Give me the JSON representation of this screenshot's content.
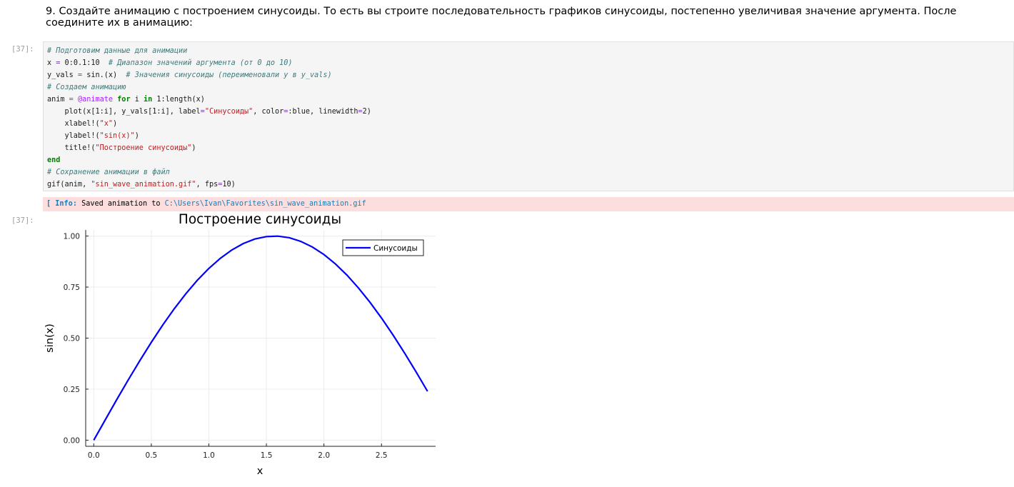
{
  "markdown": {
    "text": "9. Создайте анимацию с построением синусоиды. То есть вы строите последовательность графиков синусоиды, постепенно увеличивая значение аргумента. После соедините их в анимацию:"
  },
  "code_cell": {
    "prompt": "[37]:",
    "lines": [
      {
        "comment": "# Подготовим данные для анимации"
      },
      {
        "code": "x = 0:0.1:10",
        "comment": "# Диапазон значений аргумента (от 0 до 10)"
      },
      {
        "code": "y_vals = sin.(x)",
        "comment": "# Значения синусоиды (переименовали y в y_vals)"
      },
      {
        "comment": "# Создаем анимацию"
      },
      {
        "code": "anim = @animate for i in 1:length(x)"
      },
      {
        "code": "    plot(x[1:i], y_vals[1:i], label=\"Синусоиды\", color=:blue, linewidth=2)"
      },
      {
        "code": "    xlabel!(\"x\")"
      },
      {
        "code": "    ylabel!(\"sin(x)\")"
      },
      {
        "code": "    title!(\"Построение синусоиды\")"
      },
      {
        "code": "end"
      },
      {
        "comment": "# Сохранение анимации в файл"
      },
      {
        "code": "gif(anim, \"sin_wave_animation.gif\", fps=10)"
      }
    ]
  },
  "stderr": {
    "bracket": "[",
    "tag": "Info:",
    "message": "Saved animation to",
    "path": "C:\\Users\\Ivan\\Favorites\\sin_wave_animation.gif"
  },
  "output_prompt": "[37]:",
  "chart_data": {
    "type": "line",
    "title": "Построение синусоиды",
    "xlabel": "x",
    "ylabel": "sin(x)",
    "xlim": [
      -0.07,
      2.97
    ],
    "ylim": [
      -0.03,
      1.03
    ],
    "xticks": [
      0.0,
      0.5,
      1.0,
      1.5,
      2.0,
      2.5
    ],
    "xtick_labels": [
      "0.0",
      "0.5",
      "1.0",
      "1.5",
      "2.0",
      "2.5"
    ],
    "yticks": [
      0.0,
      0.25,
      0.5,
      0.75,
      1.0
    ],
    "ytick_labels": [
      "0.00",
      "0.25",
      "0.50",
      "0.75",
      "1.00"
    ],
    "grid": true,
    "legend_position": "top-right",
    "series": [
      {
        "name": "Синусоиды",
        "color": "#0000ff",
        "x": [
          0.0,
          0.1,
          0.2,
          0.3,
          0.4,
          0.5,
          0.6,
          0.7,
          0.8,
          0.9,
          1.0,
          1.1,
          1.2,
          1.3,
          1.4,
          1.5,
          1.6,
          1.7,
          1.8,
          1.9,
          2.0,
          2.1,
          2.2,
          2.3,
          2.4,
          2.5,
          2.6,
          2.7,
          2.8,
          2.9
        ],
        "y": [
          0.0,
          0.0998,
          0.1987,
          0.2955,
          0.3894,
          0.4794,
          0.5646,
          0.6442,
          0.7174,
          0.7833,
          0.8415,
          0.8912,
          0.932,
          0.9636,
          0.9854,
          0.9975,
          0.9996,
          0.9917,
          0.9738,
          0.9463,
          0.9093,
          0.8632,
          0.8085,
          0.7457,
          0.6755,
          0.5985,
          0.5155,
          0.4274,
          0.335,
          0.2392
        ]
      }
    ]
  }
}
